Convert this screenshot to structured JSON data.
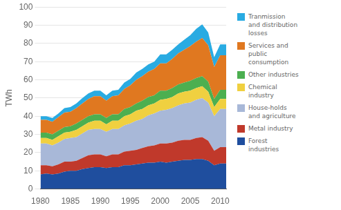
{
  "chart_data": {
    "type": "area",
    "stacked": true,
    "ylabel": "TWh",
    "x": [
      1980,
      1981,
      1982,
      1983,
      1984,
      1985,
      1986,
      1987,
      1988,
      1989,
      1990,
      1991,
      1992,
      1993,
      1994,
      1995,
      1996,
      1997,
      1998,
      1999,
      2000,
      2001,
      2002,
      2003,
      2004,
      2005,
      2006,
      2007,
      2008,
      2009,
      2010,
      2011
    ],
    "series": [
      {
        "name": "Forest\nindustries",
        "color": "#1f4e9e",
        "values": [
          8,
          8.5,
          8,
          8.5,
          9.5,
          10,
          10,
          11,
          11.5,
          12,
          12,
          11.5,
          12,
          12,
          13,
          13,
          13.5,
          14,
          14.5,
          14.5,
          15,
          14.5,
          15,
          15.5,
          16,
          16,
          16.5,
          16.5,
          15.5,
          13,
          14,
          14
        ]
      },
      {
        "name": "Metal industry",
        "color": "#c0392b",
        "values": [
          5,
          4.5,
          4.5,
          5,
          5.5,
          5,
          5.5,
          6,
          7,
          7,
          7,
          6.5,
          7,
          7,
          7.5,
          8,
          8,
          8.5,
          9,
          9.5,
          10,
          10.5,
          10.5,
          11,
          11,
          11,
          11.5,
          12,
          11,
          8,
          9,
          9
        ]
      },
      {
        "name": "House-holds\nand agriculture",
        "color": "#a8b8d8",
        "values": [
          12,
          12,
          11.5,
          12,
          12.5,
          13,
          13,
          13.5,
          14,
          14,
          14,
          13.5,
          14,
          14,
          14.5,
          15,
          16,
          16,
          17,
          17.5,
          18,
          18.5,
          19,
          19.5,
          20,
          20.5,
          21,
          21.5,
          21,
          19,
          21,
          21
        ]
      },
      {
        "name": "Chemical\nindustry",
        "color": "#f0d040",
        "values": [
          3,
          3,
          3,
          3.5,
          3.5,
          3.5,
          4,
          4,
          4,
          4.5,
          4.5,
          4,
          4.5,
          4.5,
          5,
          5,
          5.5,
          5.5,
          5.5,
          5.5,
          6,
          6,
          6,
          6.5,
          6.5,
          6.5,
          6.5,
          6.5,
          6,
          5,
          5.5,
          5.5
        ]
      },
      {
        "name": "Other industries",
        "color": "#4caf50",
        "values": [
          3,
          3,
          3,
          3,
          3,
          3,
          3.5,
          3.5,
          3.5,
          3.5,
          3.5,
          3.5,
          3.5,
          3.5,
          4,
          4,
          4,
          4.5,
          4.5,
          4.5,
          5,
          4.5,
          5,
          5,
          5,
          5.5,
          5.5,
          5.5,
          5.5,
          4.5,
          5,
          5
        ]
      },
      {
        "name": "Services and\npublic\nconsumption",
        "color": "#e07820",
        "values": [
          7,
          7,
          7,
          7.5,
          8,
          8,
          8.5,
          9,
          9.5,
          10,
          10,
          9.5,
          10,
          10.5,
          11,
          12,
          13,
          13.5,
          14,
          14.5,
          15,
          15,
          16,
          17,
          18,
          19,
          20,
          21,
          20,
          17.5,
          19,
          19
        ]
      },
      {
        "name": "Tranmission\nand distribution\nlosses",
        "color": "#29abe2",
        "values": [
          2,
          2,
          2,
          2,
          2.5,
          2.5,
          2.5,
          3,
          3,
          3,
          3,
          3,
          3,
          3,
          3.5,
          3.5,
          4,
          4,
          4,
          4,
          5,
          5,
          5,
          5,
          5.5,
          6,
          7,
          7.5,
          7,
          5.5,
          6,
          6
        ]
      }
    ],
    "xlim": [
      1980,
      2011
    ],
    "xticks": [
      1980,
      1985,
      1990,
      1995,
      2000,
      2005,
      2010
    ],
    "ylim": [
      0,
      100
    ],
    "yticks": [
      0,
      10,
      20,
      30,
      40,
      50,
      60,
      70,
      80,
      90,
      100
    ],
    "grid": "y",
    "legend": "right"
  }
}
